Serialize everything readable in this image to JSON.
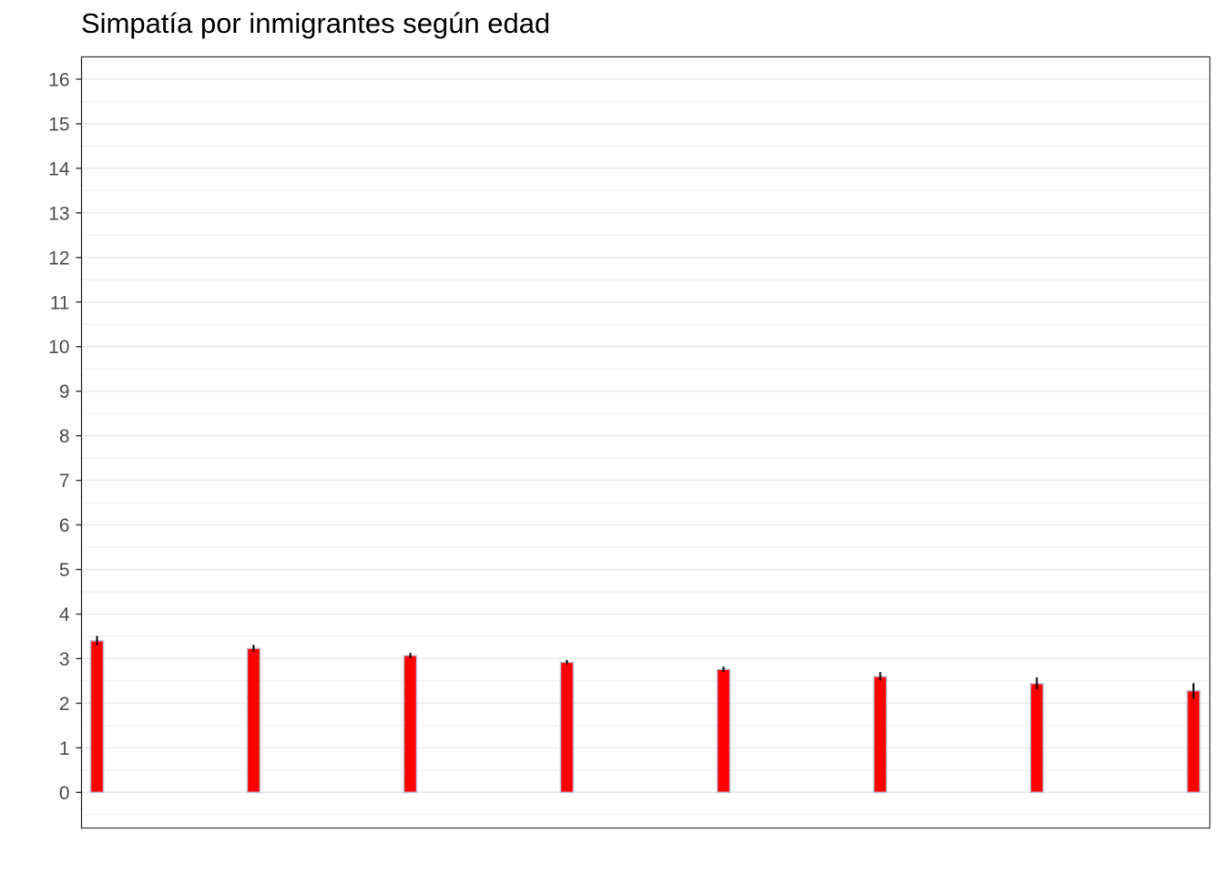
{
  "chart_data": {
    "type": "bar",
    "title": "Simpatía por inmigrantes según edad",
    "xlabel": "",
    "ylabel": "",
    "ylim": [
      -0.8,
      16.5
    ],
    "yticks": [
      0,
      1,
      2,
      3,
      4,
      5,
      6,
      7,
      8,
      9,
      10,
      11,
      12,
      13,
      14,
      15,
      16
    ],
    "grid": true,
    "categories": [
      "",
      "",
      "",
      "",
      "",
      "",
      "",
      ""
    ],
    "values": [
      3.4,
      3.23,
      3.07,
      2.92,
      2.76,
      2.6,
      2.44,
      2.28
    ],
    "error_low": [
      3.3,
      3.16,
      3.01,
      2.87,
      2.7,
      2.51,
      2.31,
      2.1
    ],
    "error_high": [
      3.51,
      3.31,
      3.13,
      2.97,
      2.82,
      2.7,
      2.58,
      2.45
    ],
    "colors": {
      "bar_fill": "#ff0000",
      "bar_outline": "#c0c0d8",
      "error_bar": "#000000",
      "grid": "#ebebeb",
      "panel_border": "#333333"
    }
  }
}
